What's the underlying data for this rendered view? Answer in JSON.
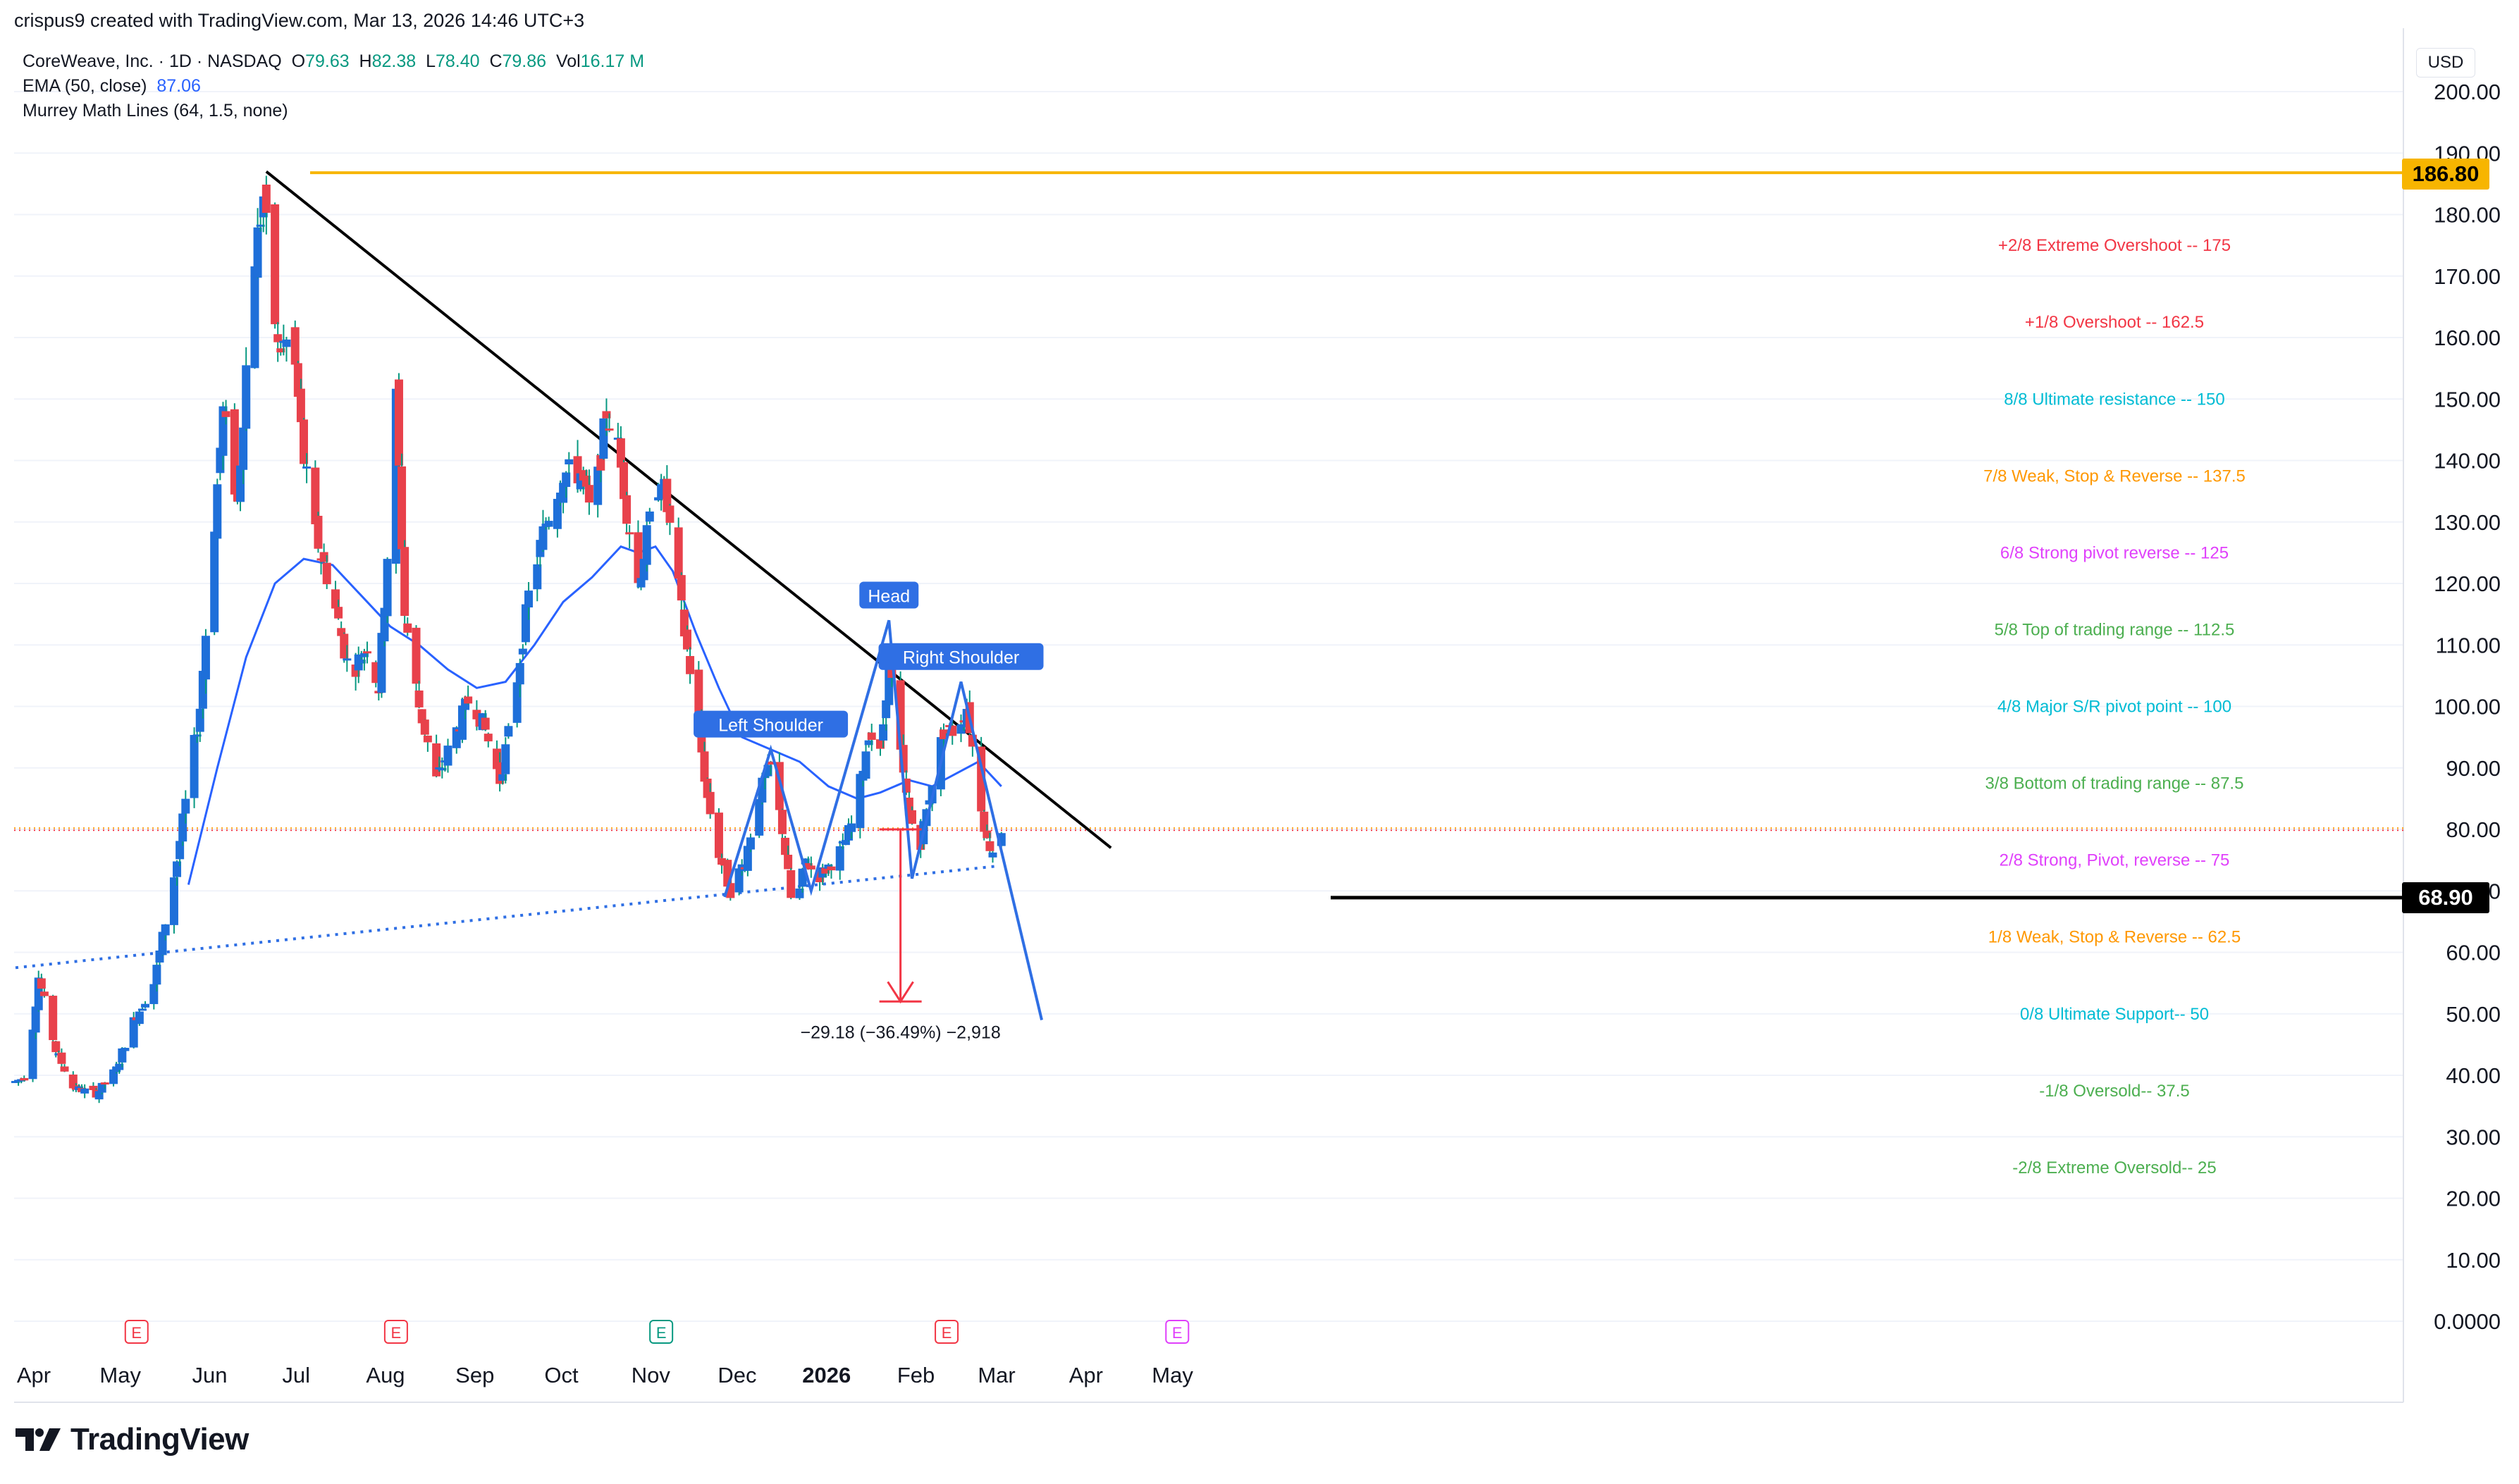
{
  "attribution": "crispus9 created with TradingView.com, Mar 13, 2026 14:46 UTC+3",
  "legend": {
    "symbol": "CoreWeave, Inc. · 1D · NASDAQ",
    "open_label": "O",
    "open": "79.63",
    "high_label": "H",
    "high": "82.38",
    "low_label": "L",
    "low": "78.40",
    "close_label": "C",
    "close": "79.86",
    "vol_label": "Vol",
    "vol": "16.17 M",
    "ema_label": "EMA (50, close)",
    "ema_value": "87.06",
    "murrey_label": "Murrey Math Lines (64, 1.5, none)"
  },
  "currency": "USD",
  "brand": "TradingView",
  "price_tags": {
    "top": "186.80",
    "low": "68.90"
  },
  "colors": {
    "up": "#1e6fd9",
    "down": "#e8414b",
    "ema": "#2962ff",
    "wick": "#089981",
    "top_line": "#f7b500",
    "pattern": "#2f6fe4",
    "trend": "#000000",
    "measure": "#f23645"
  },
  "chart_data": {
    "type": "candlestick",
    "title": "CoreWeave, Inc. · 1D · NASDAQ",
    "ylim": [
      0,
      200
    ],
    "y_ticks": [
      "0.0000",
      "10.00",
      "20.00",
      "30.00",
      "40.00",
      "50.00",
      "60.00",
      "70.00",
      "80.00",
      "90.00",
      "100.00",
      "110.00",
      "120.00",
      "130.00",
      "140.00",
      "150.00",
      "160.00",
      "170.00",
      "180.00",
      "190.00",
      "200.00"
    ],
    "x_ticks": [
      "Apr",
      "May",
      "Jun",
      "Jul",
      "Aug",
      "Sep",
      "Oct",
      "Nov",
      "Dec",
      "2026",
      "Feb",
      "Mar",
      "Apr",
      "May"
    ],
    "price_path": [
      {
        "d": 0,
        "p": 39
      },
      {
        "d": 4,
        "p": 40
      },
      {
        "d": 8,
        "p": 56
      },
      {
        "d": 14,
        "p": 44
      },
      {
        "d": 20,
        "p": 38
      },
      {
        "d": 28,
        "p": 37
      },
      {
        "d": 35,
        "p": 41
      },
      {
        "d": 40,
        "p": 48
      },
      {
        "d": 48,
        "p": 55
      },
      {
        "d": 56,
        "p": 75
      },
      {
        "d": 64,
        "p": 100
      },
      {
        "d": 72,
        "p": 148
      },
      {
        "d": 77,
        "p": 133
      },
      {
        "d": 82,
        "p": 170
      },
      {
        "d": 86,
        "p": 183
      },
      {
        "d": 88,
        "p": 172
      },
      {
        "d": 91,
        "p": 158
      },
      {
        "d": 96,
        "p": 160
      },
      {
        "d": 100,
        "p": 140
      },
      {
        "d": 104,
        "p": 128
      },
      {
        "d": 110,
        "p": 118
      },
      {
        "d": 116,
        "p": 105
      },
      {
        "d": 122,
        "p": 110
      },
      {
        "d": 126,
        "p": 103
      },
      {
        "d": 130,
        "p": 132
      },
      {
        "d": 132,
        "p": 150
      },
      {
        "d": 135,
        "p": 115
      },
      {
        "d": 140,
        "p": 100
      },
      {
        "d": 146,
        "p": 88
      },
      {
        "d": 152,
        "p": 95
      },
      {
        "d": 158,
        "p": 102
      },
      {
        "d": 163,
        "p": 96
      },
      {
        "d": 168,
        "p": 88
      },
      {
        "d": 172,
        "p": 98
      },
      {
        "d": 178,
        "p": 118
      },
      {
        "d": 184,
        "p": 130
      },
      {
        "d": 190,
        "p": 138
      },
      {
        "d": 196,
        "p": 138
      },
      {
        "d": 200,
        "p": 130
      },
      {
        "d": 205,
        "p": 148
      },
      {
        "d": 209,
        "p": 142
      },
      {
        "d": 212,
        "p": 132
      },
      {
        "d": 216,
        "p": 120
      },
      {
        "d": 220,
        "p": 130
      },
      {
        "d": 224,
        "p": 138
      },
      {
        "d": 228,
        "p": 126
      },
      {
        "d": 232,
        "p": 112
      },
      {
        "d": 236,
        "p": 100
      },
      {
        "d": 240,
        "p": 85
      },
      {
        "d": 244,
        "p": 76
      },
      {
        "d": 248,
        "p": 70
      },
      {
        "d": 253,
        "p": 75
      },
      {
        "d": 258,
        "p": 86
      },
      {
        "d": 262,
        "p": 90
      },
      {
        "d": 266,
        "p": 80
      },
      {
        "d": 270,
        "p": 65
      },
      {
        "d": 274,
        "p": 75
      },
      {
        "d": 278,
        "p": 72
      },
      {
        "d": 282,
        "p": 74
      },
      {
        "d": 287,
        "p": 77
      },
      {
        "d": 291,
        "p": 82
      },
      {
        "d": 296,
        "p": 96
      },
      {
        "d": 300,
        "p": 92
      },
      {
        "d": 303,
        "p": 108
      },
      {
        "d": 306,
        "p": 95
      },
      {
        "d": 310,
        "p": 82
      },
      {
        "d": 314,
        "p": 78
      },
      {
        "d": 318,
        "p": 88
      },
      {
        "d": 322,
        "p": 96
      },
      {
        "d": 326,
        "p": 96
      },
      {
        "d": 330,
        "p": 100
      },
      {
        "d": 333,
        "p": 90
      },
      {
        "d": 337,
        "p": 78
      },
      {
        "d": 340,
        "p": 76
      },
      {
        "d": 342,
        "p": 80
      }
    ],
    "ema50_path": [
      {
        "d": 60,
        "p": 71
      },
      {
        "d": 70,
        "p": 90
      },
      {
        "d": 80,
        "p": 108
      },
      {
        "d": 90,
        "p": 120
      },
      {
        "d": 100,
        "p": 124
      },
      {
        "d": 110,
        "p": 123
      },
      {
        "d": 120,
        "p": 118
      },
      {
        "d": 130,
        "p": 113
      },
      {
        "d": 140,
        "p": 110
      },
      {
        "d": 150,
        "p": 106
      },
      {
        "d": 160,
        "p": 103
      },
      {
        "d": 170,
        "p": 104
      },
      {
        "d": 180,
        "p": 110
      },
      {
        "d": 190,
        "p": 117
      },
      {
        "d": 200,
        "p": 121
      },
      {
        "d": 210,
        "p": 126
      },
      {
        "d": 216,
        "p": 125
      },
      {
        "d": 222,
        "p": 126
      },
      {
        "d": 228,
        "p": 122
      },
      {
        "d": 236,
        "p": 112
      },
      {
        "d": 244,
        "p": 103
      },
      {
        "d": 252,
        "p": 95
      },
      {
        "d": 262,
        "p": 93
      },
      {
        "d": 272,
        "p": 91
      },
      {
        "d": 282,
        "p": 87
      },
      {
        "d": 292,
        "p": 85
      },
      {
        "d": 300,
        "p": 86
      },
      {
        "d": 310,
        "p": 88
      },
      {
        "d": 318,
        "p": 87
      },
      {
        "d": 326,
        "p": 89
      },
      {
        "d": 334,
        "p": 91
      },
      {
        "d": 342,
        "p": 87
      }
    ],
    "resistance_level": 186.8,
    "neckline_level": 68.9,
    "trendline": {
      "from": {
        "d": 87,
        "p": 187
      },
      "to": {
        "d": 380,
        "p": 77
      }
    },
    "support_trend": {
      "from": {
        "d": 0,
        "p": 57.5
      },
      "to": {
        "d": 340,
        "p": 74
      }
    },
    "head_shoulders": {
      "points": [
        {
          "d": 246,
          "p": 69
        },
        {
          "d": 262,
          "p": 93
        },
        {
          "d": 276,
          "p": 70
        },
        {
          "d": 303,
          "p": 114
        },
        {
          "d": 311,
          "p": 72
        },
        {
          "d": 328,
          "p": 104
        },
        {
          "d": 356,
          "p": 49
        }
      ],
      "labels": [
        {
          "text": "Left Shoulder",
          "d": 262,
          "p": 97
        },
        {
          "text": "Head",
          "d": 303,
          "p": 118
        },
        {
          "text": "Right Shoulder",
          "d": 328,
          "p": 108
        }
      ]
    },
    "measure": {
      "d": 307,
      "from": 80,
      "to": 52,
      "label": "−29.18 (−36.49%) −2,918"
    },
    "murrey_lines": [
      {
        "label": "+2/8 Extreme Overshoot --  175",
        "level": 175,
        "color": "#f23645"
      },
      {
        "label": "+1/8 Overshoot --  162.5",
        "level": 162.5,
        "color": "#f23645"
      },
      {
        "label": "8/8 Ultimate resistance --  150",
        "level": 150,
        "color": "#00bcd4"
      },
      {
        "label": "7/8 Weak, Stop & Reverse --  137.5",
        "level": 137.5,
        "color": "#ff9800"
      },
      {
        "label": "6/8 Strong pivot reverse --  125",
        "level": 125,
        "color": "#e040fb"
      },
      {
        "label": "5/8 Top of trading range --  112.5",
        "level": 112.5,
        "color": "#4caf50"
      },
      {
        "label": "4/8 Major S/R pivot point --  100",
        "level": 100,
        "color": "#00bcd4"
      },
      {
        "label": "3/8 Bottom of trading range --  87.5",
        "level": 87.5,
        "color": "#4caf50"
      },
      {
        "label": "2/8 Strong, Pivot, reverse --  75",
        "level": 75,
        "color": "#e040fb"
      },
      {
        "label": "1/8 Weak, Stop & Reverse --  62.5",
        "level": 62.5,
        "color": "#ff9800"
      },
      {
        "label": "0/8 Ultimate Support--  50",
        "level": 50,
        "color": "#00bcd4"
      },
      {
        "label": "-1/8 Oversold--  37.5",
        "level": 37.5,
        "color": "#4caf50"
      },
      {
        "label": "-2/8 Extreme Oversold--  25",
        "level": 25,
        "color": "#4caf50"
      }
    ],
    "earnings_markers": [
      {
        "d": 42,
        "label": "E",
        "color": "#f23645"
      },
      {
        "d": 132,
        "label": "E",
        "color": "#f23645"
      },
      {
        "d": 224,
        "label": "E",
        "color": "#089981"
      },
      {
        "d": 323,
        "label": "E",
        "color": "#f23645"
      },
      {
        "d": 403,
        "label": "E",
        "color": "#e040fb"
      }
    ]
  }
}
